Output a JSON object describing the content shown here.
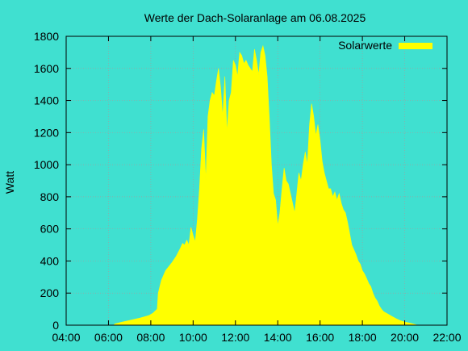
{
  "chart_data": {
    "type": "area",
    "title": "Werte der Dach-Solaranlage am 06.08.2025",
    "xlabel": "",
    "ylabel": "Watt",
    "x_unit": "time of day (hours)",
    "xlim": [
      4,
      22
    ],
    "ylim": [
      0,
      1800
    ],
    "x_ticks": [
      "04:00",
      "06:00",
      "08:00",
      "10:00",
      "12:00",
      "14:00",
      "16:00",
      "18:00",
      "20:00",
      "22:00"
    ],
    "y_ticks": [
      "0",
      "200",
      "400",
      "600",
      "800",
      "1000",
      "1200",
      "1400",
      "1600",
      "1800"
    ],
    "grid": true,
    "legend_position": "top-right",
    "colors": {
      "background": "#40e0d0",
      "series": "#ffff00",
      "grid": "#a0a0a0"
    },
    "series": [
      {
        "name": "Solarwerte",
        "color": "#ffff00",
        "points": [
          [
            6.25,
            0
          ],
          [
            6.3,
            8
          ],
          [
            6.6,
            18
          ],
          [
            7.0,
            30
          ],
          [
            7.5,
            45
          ],
          [
            7.9,
            60
          ],
          [
            8.1,
            75
          ],
          [
            8.3,
            100
          ],
          [
            8.35,
            200
          ],
          [
            8.5,
            280
          ],
          [
            8.7,
            340
          ],
          [
            9.0,
            390
          ],
          [
            9.2,
            430
          ],
          [
            9.4,
            480
          ],
          [
            9.5,
            510
          ],
          [
            9.6,
            500
          ],
          [
            9.7,
            530
          ],
          [
            9.8,
            500
          ],
          [
            9.9,
            610
          ],
          [
            10.0,
            560
          ],
          [
            10.1,
            520
          ],
          [
            10.2,
            660
          ],
          [
            10.3,
            850
          ],
          [
            10.4,
            1100
          ],
          [
            10.5,
            1220
          ],
          [
            10.6,
            900
          ],
          [
            10.7,
            1300
          ],
          [
            10.8,
            1400
          ],
          [
            10.9,
            1450
          ],
          [
            11.0,
            1430
          ],
          [
            11.1,
            1520
          ],
          [
            11.2,
            1600
          ],
          [
            11.3,
            1480
          ],
          [
            11.4,
            1300
          ],
          [
            11.5,
            1550
          ],
          [
            11.6,
            1200
          ],
          [
            11.7,
            1400
          ],
          [
            11.8,
            1450
          ],
          [
            11.9,
            1650
          ],
          [
            12.0,
            1620
          ],
          [
            12.1,
            1550
          ],
          [
            12.2,
            1700
          ],
          [
            12.3,
            1680
          ],
          [
            12.4,
            1630
          ],
          [
            12.5,
            1650
          ],
          [
            12.6,
            1620
          ],
          [
            12.7,
            1600
          ],
          [
            12.8,
            1580
          ],
          [
            12.9,
            1720
          ],
          [
            13.0,
            1650
          ],
          [
            13.1,
            1560
          ],
          [
            13.2,
            1700
          ],
          [
            13.3,
            1740
          ],
          [
            13.4,
            1680
          ],
          [
            13.5,
            1550
          ],
          [
            13.6,
            1300
          ],
          [
            13.7,
            1000
          ],
          [
            13.8,
            820
          ],
          [
            13.9,
            780
          ],
          [
            14.0,
            620
          ],
          [
            14.1,
            700
          ],
          [
            14.2,
            850
          ],
          [
            14.3,
            980
          ],
          [
            14.4,
            900
          ],
          [
            14.5,
            880
          ],
          [
            14.6,
            820
          ],
          [
            14.7,
            760
          ],
          [
            14.8,
            700
          ],
          [
            14.9,
            820
          ],
          [
            15.0,
            950
          ],
          [
            15.1,
            900
          ],
          [
            15.2,
            1000
          ],
          [
            15.3,
            1080
          ],
          [
            15.4,
            1000
          ],
          [
            15.5,
            1250
          ],
          [
            15.6,
            1380
          ],
          [
            15.7,
            1300
          ],
          [
            15.8,
            1180
          ],
          [
            15.9,
            1250
          ],
          [
            16.0,
            1150
          ],
          [
            16.1,
            1020
          ],
          [
            16.2,
            950
          ],
          [
            16.3,
            900
          ],
          [
            16.4,
            850
          ],
          [
            16.5,
            850
          ],
          [
            16.6,
            800
          ],
          [
            16.7,
            830
          ],
          [
            16.8,
            780
          ],
          [
            16.9,
            820
          ],
          [
            17.0,
            760
          ],
          [
            17.1,
            720
          ],
          [
            17.2,
            700
          ],
          [
            17.3,
            640
          ],
          [
            17.4,
            570
          ],
          [
            17.5,
            500
          ],
          [
            17.6,
            470
          ],
          [
            17.7,
            440
          ],
          [
            17.8,
            400
          ],
          [
            17.9,
            380
          ],
          [
            18.0,
            340
          ],
          [
            18.1,
            320
          ],
          [
            18.2,
            290
          ],
          [
            18.3,
            260
          ],
          [
            18.4,
            240
          ],
          [
            18.5,
            200
          ],
          [
            18.6,
            170
          ],
          [
            18.7,
            150
          ],
          [
            18.8,
            120
          ],
          [
            18.9,
            100
          ],
          [
            19.0,
            85
          ],
          [
            19.2,
            70
          ],
          [
            19.4,
            55
          ],
          [
            19.6,
            40
          ],
          [
            19.8,
            28
          ],
          [
            20.0,
            20
          ],
          [
            20.2,
            14
          ],
          [
            20.4,
            8
          ],
          [
            20.5,
            4
          ],
          [
            20.6,
            0
          ]
        ]
      }
    ]
  }
}
